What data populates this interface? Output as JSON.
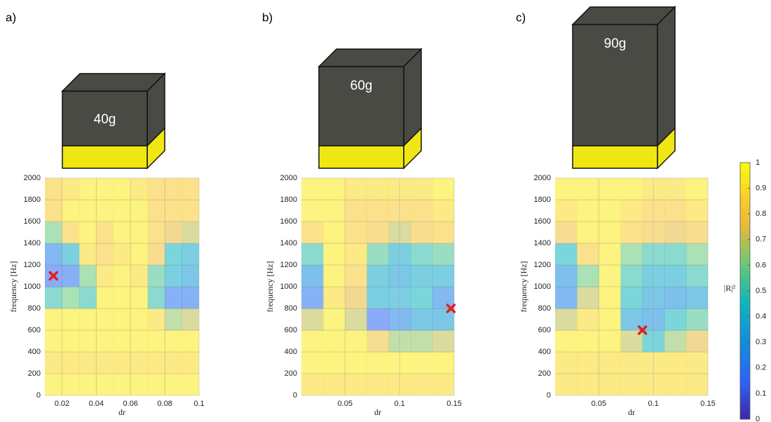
{
  "chart_data": [
    {
      "type": "heatmap",
      "panel_label": "a)",
      "mass_label": "40g",
      "xlabel": "dr",
      "ylabel": "frequency [Hz]",
      "xlim": [
        0.01,
        0.1
      ],
      "xticks": [
        0.02,
        0.04,
        0.06,
        0.08,
        0.1
      ],
      "ylim": [
        0,
        2000
      ],
      "yticks": [
        0,
        200,
        400,
        600,
        800,
        1000,
        1200,
        1400,
        1600,
        1800,
        2000
      ],
      "grid": true,
      "x": [
        0.015,
        0.025,
        0.035,
        0.045,
        0.055,
        0.065,
        0.075,
        0.085,
        0.095
      ],
      "y": [
        100,
        300,
        500,
        700,
        900,
        1100,
        1300,
        1500,
        1700,
        1900
      ],
      "z": [
        [
          0.95,
          0.9,
          0.95,
          0.95,
          0.5,
          0.15,
          0.25,
          0.6,
          0.85,
          0.85
        ],
        [
          0.95,
          0.9,
          0.95,
          0.95,
          0.6,
          0.2,
          0.4,
          0.85,
          0.95,
          0.9
        ],
        [
          0.95,
          0.9,
          0.95,
          0.95,
          0.5,
          0.6,
          0.9,
          0.95,
          0.95,
          0.95
        ],
        [
          0.95,
          0.9,
          0.95,
          0.95,
          0.95,
          0.9,
          0.85,
          0.85,
          0.95,
          0.95
        ],
        [
          0.95,
          0.9,
          0.95,
          0.95,
          0.95,
          0.95,
          0.9,
          0.95,
          0.95,
          0.95
        ],
        [
          0.95,
          0.9,
          0.95,
          0.95,
          0.95,
          0.9,
          0.95,
          0.95,
          0.95,
          0.9
        ],
        [
          0.95,
          0.9,
          0.95,
          0.9,
          0.5,
          0.55,
          0.8,
          0.85,
          0.85,
          0.85
        ],
        [
          0.95,
          0.9,
          0.95,
          0.65,
          0.2,
          0.4,
          0.45,
          0.75,
          0.85,
          0.85
        ],
        [
          0.95,
          0.9,
          0.95,
          0.7,
          0.2,
          0.35,
          0.4,
          0.7,
          0.85,
          0.85
        ]
      ],
      "marker": {
        "x": 0.015,
        "y": 1100,
        "color": "#e02020"
      }
    },
    {
      "type": "heatmap",
      "panel_label": "b)",
      "mass_label": "60g",
      "xlabel": "dr",
      "ylabel": "frequency [Hz]",
      "xlim": [
        0.01,
        0.15
      ],
      "xticks": [
        0.05,
        0.1,
        0.15
      ],
      "ylim": [
        0,
        2000
      ],
      "yticks": [
        0,
        200,
        400,
        600,
        800,
        1000,
        1200,
        1400,
        1600,
        1800,
        2000
      ],
      "grid": true,
      "x": [
        0.02,
        0.04,
        0.06,
        0.08,
        0.1,
        0.12,
        0.14
      ],
      "y": [
        100,
        300,
        500,
        700,
        900,
        1100,
        1300,
        1500,
        1700,
        1900
      ],
      "z": [
        [
          0.9,
          0.95,
          0.95,
          0.7,
          0.2,
          0.3,
          0.5,
          0.85,
          0.95,
          0.95
        ],
        [
          0.9,
          0.95,
          0.95,
          0.95,
          0.9,
          0.95,
          0.95,
          0.95,
          0.95,
          0.95
        ],
        [
          0.9,
          0.95,
          0.95,
          0.7,
          0.75,
          0.85,
          0.9,
          0.85,
          0.85,
          0.9
        ],
        [
          0.9,
          0.95,
          0.8,
          0.15,
          0.4,
          0.4,
          0.55,
          0.8,
          0.85,
          0.9
        ],
        [
          0.9,
          0.95,
          0.65,
          0.25,
          0.4,
          0.35,
          0.4,
          0.7,
          0.85,
          0.9
        ],
        [
          0.9,
          0.95,
          0.65,
          0.35,
          0.45,
          0.4,
          0.5,
          0.8,
          0.85,
          0.9
        ],
        [
          0.9,
          0.95,
          0.7,
          0.35,
          0.25,
          0.4,
          0.55,
          0.85,
          0.9,
          0.95
        ]
      ],
      "marker": {
        "x": 0.147,
        "y": 800,
        "color": "#e02020"
      }
    },
    {
      "type": "heatmap",
      "panel_label": "c)",
      "mass_label": "90g",
      "xlabel": "dr",
      "ylabel": "frequency [Hz]",
      "xlim": [
        0.01,
        0.15
      ],
      "xticks": [
        0.05,
        0.1,
        0.15
      ],
      "ylim": [
        0,
        2000
      ],
      "yticks": [
        0,
        200,
        400,
        600,
        800,
        1000,
        1200,
        1400,
        1600,
        1800,
        2000
      ],
      "grid": true,
      "x": [
        0.02,
        0.04,
        0.06,
        0.08,
        0.1,
        0.12,
        0.14
      ],
      "y": [
        100,
        300,
        500,
        700,
        900,
        1100,
        1300,
        1500,
        1700,
        1900
      ],
      "z": [
        [
          0.9,
          0.9,
          0.95,
          0.7,
          0.25,
          0.3,
          0.45,
          0.8,
          0.9,
          0.95
        ],
        [
          0.9,
          0.9,
          0.95,
          0.9,
          0.7,
          0.6,
          0.85,
          0.95,
          0.95,
          0.95
        ],
        [
          0.9,
          0.9,
          0.95,
          0.95,
          0.95,
          0.95,
          0.95,
          0.95,
          0.95,
          0.95
        ],
        [
          0.9,
          0.9,
          0.7,
          0.35,
          0.45,
          0.5,
          0.6,
          0.85,
          0.9,
          0.95
        ],
        [
          0.9,
          0.9,
          0.45,
          0.3,
          0.35,
          0.4,
          0.5,
          0.8,
          0.85,
          0.9
        ],
        [
          0.9,
          0.9,
          0.65,
          0.45,
          0.3,
          0.4,
          0.5,
          0.75,
          0.85,
          0.9
        ],
        [
          0.9,
          0.9,
          0.75,
          0.55,
          0.35,
          0.5,
          0.6,
          0.8,
          0.9,
          0.95
        ]
      ],
      "marker": {
        "x": 0.09,
        "y": 600,
        "color": "#e02020"
      }
    }
  ],
  "colorbar": {
    "label": "|R|²",
    "lim": [
      0,
      1
    ],
    "ticks": [
      0,
      0.1,
      0.2,
      0.3,
      0.4,
      0.5,
      0.6,
      0.7,
      0.8,
      0.9,
      1
    ],
    "colormap": "parula"
  }
}
